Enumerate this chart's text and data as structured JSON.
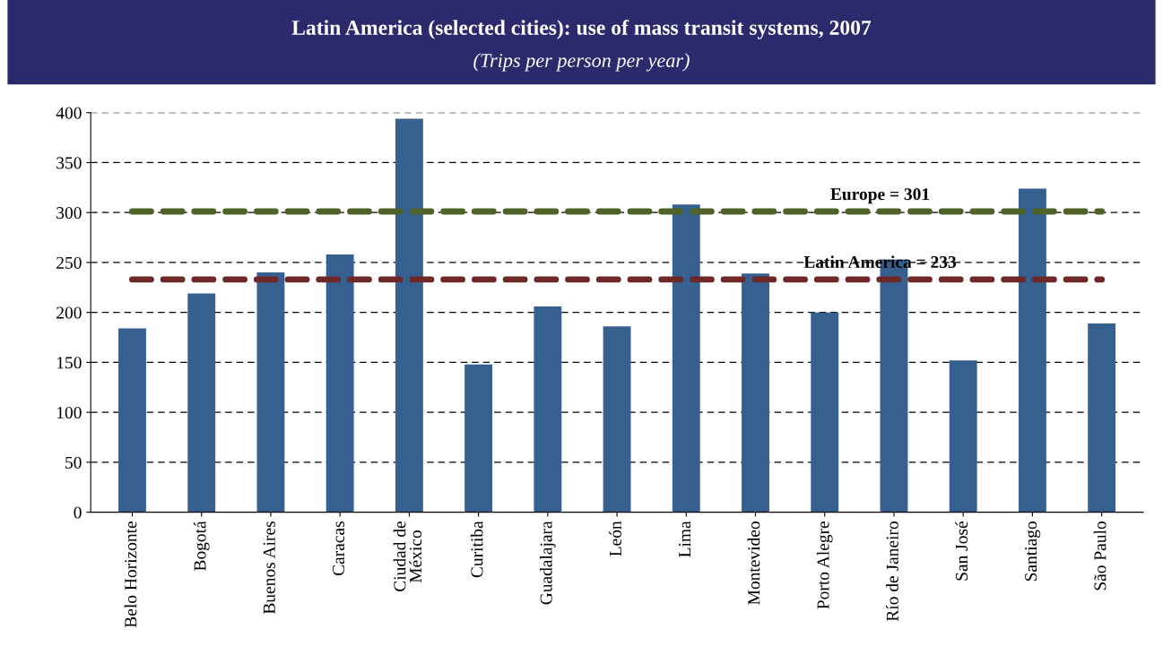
{
  "chart_data": {
    "type": "bar",
    "title": "Latin America (selected cities): use of mass transit systems, 2007",
    "subtitle": "(Trips per person per year)",
    "categories": [
      "Belo Horizonte",
      "Bogotá",
      "Buenos Aires",
      "Caracas",
      "Ciudad de\nMéxico",
      "Curitiba",
      "Guadalajara",
      "León",
      "Lima",
      "Montevideo",
      "Porto Alegre",
      "Río de Janeiro",
      "San José",
      "Santiago",
      "São Paulo"
    ],
    "values": [
      184,
      219,
      240,
      258,
      394,
      148,
      206,
      186,
      308,
      239,
      200,
      253,
      152,
      324,
      189
    ],
    "color": "#35608f",
    "ylim": [
      0,
      400
    ],
    "yticks": [
      0,
      50,
      100,
      150,
      200,
      250,
      300,
      350,
      400
    ],
    "grid": "y",
    "ref_lines": [
      {
        "axis": "y",
        "value": 301,
        "label": "Europe = 301",
        "color": "#4f6228",
        "line_style": "dashed"
      },
      {
        "axis": "y",
        "value": 233,
        "label": "Latin America = 233",
        "color": "#6e2828",
        "line_style": "dashed"
      }
    ]
  }
}
